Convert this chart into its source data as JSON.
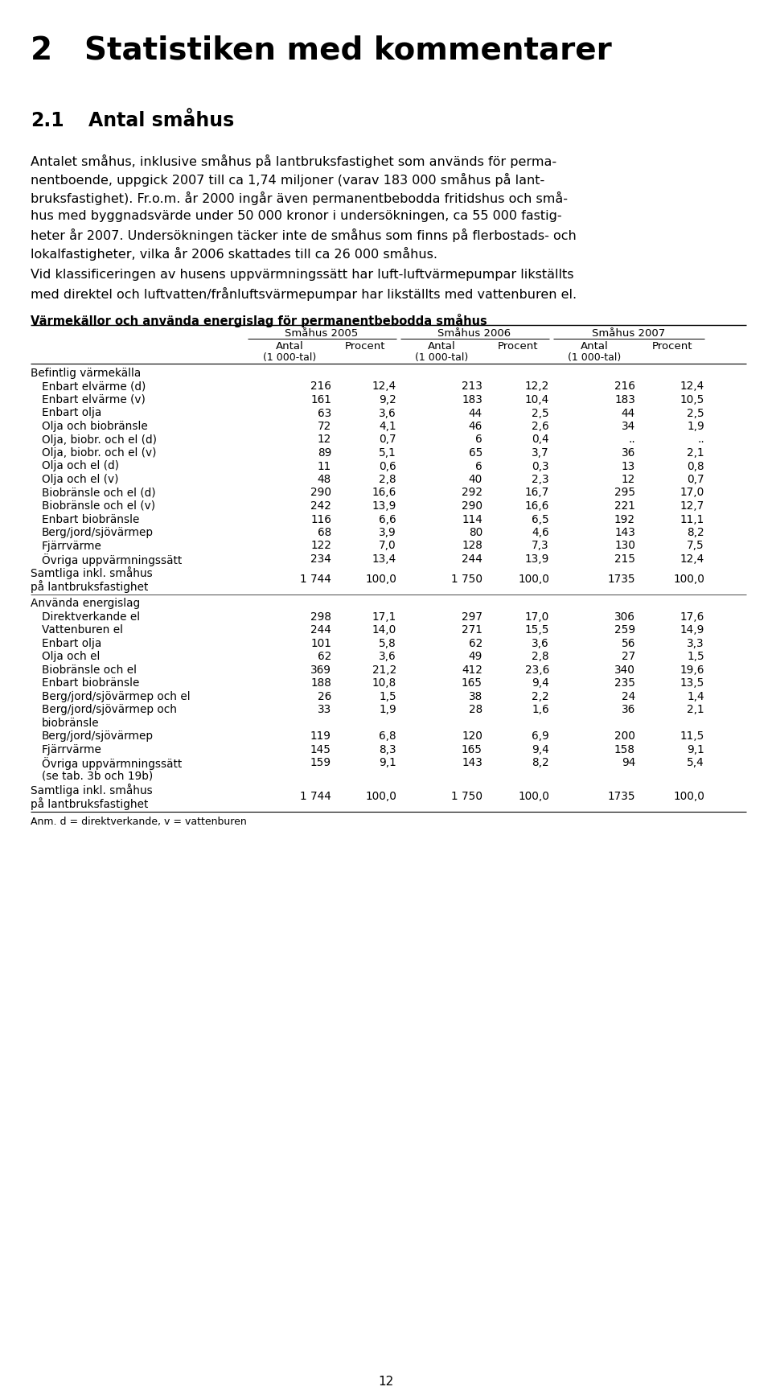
{
  "page_num": "12",
  "chapter_num": "2",
  "chapter_title": "Statistiken med kommentarer",
  "section_num": "2.1",
  "section_title": "Antal småhus",
  "body_text": [
    "Antalet småhus, inklusive småhus på lantbruksfastighet som används för perma-",
    "nentboende, uppgick 2007 till ca 1,74 miljoner (varav 183 000 småhus på lant-",
    "bruksfastighet). Fr.o.m. år 2000 ingår även permanentbebodda fritidshus och små-",
    "hus med byggnadsvärde under 50 000 kronor i undersökningen, ca 55 000 fastig-",
    "heter år 2007. Undersökningen täcker inte de småhus som finns på flerbostads- och",
    "lokalfastigheter, vilka år 2006 skattades till ca 26 000 småhus."
  ],
  "body_text2": [
    "Vid klassificeringen av husens uppvärmningssätt har luft-luftvärmepumpar likställts",
    "med direktel och luftvatten/frånluftsvärmepumpar har likställts med vattenburen el."
  ],
  "table_title": "Värmekällor och använda energislag för permanentbebodda småhus",
  "col_groups": [
    "Småhus 2005",
    "Småhus 2006",
    "Småhus 2007"
  ],
  "col_headers": [
    "Antal",
    "Procent",
    "Antal",
    "Procent",
    "Antal",
    "Procent"
  ],
  "col_subheaders": [
    "(1 000-tal)",
    "",
    "(1 000-tal)",
    "",
    "(1 000-tal)",
    ""
  ],
  "section1_label": "Befintlig värmekälla",
  "rows_section1": [
    [
      "Enbart elvärme (d)",
      "216",
      "12,4",
      "213",
      "12,2",
      "216",
      "12,4"
    ],
    [
      "Enbart elvärme (v)",
      "161",
      "9,2",
      "183",
      "10,4",
      "183",
      "10,5"
    ],
    [
      "Enbart olja",
      "63",
      "3,6",
      "44",
      "2,5",
      "44",
      "2,5"
    ],
    [
      "Olja och biobränsle",
      "72",
      "4,1",
      "46",
      "2,6",
      "34",
      "1,9"
    ],
    [
      "Olja, biobr. och el (d)",
      "12",
      "0,7",
      "6",
      "0,4",
      "..",
      ".."
    ],
    [
      "Olja, biobr. och el (v)",
      "89",
      "5,1",
      "65",
      "3,7",
      "36",
      "2,1"
    ],
    [
      "Olja och el (d)",
      "11",
      "0,6",
      "6",
      "0,3",
      "13",
      "0,8"
    ],
    [
      "Olja och el (v)",
      "48",
      "2,8",
      "40",
      "2,3",
      "12",
      "0,7"
    ],
    [
      "Biobränsle och el (d)",
      "290",
      "16,6",
      "292",
      "16,7",
      "295",
      "17,0"
    ],
    [
      "Biobränsle och el (v)",
      "242",
      "13,9",
      "290",
      "16,6",
      "221",
      "12,7"
    ],
    [
      "Enbart biobränsle",
      "116",
      "6,6",
      "114",
      "6,5",
      "192",
      "11,1"
    ],
    [
      "Berg/jord/sjövärmep",
      "68",
      "3,9",
      "80",
      "4,6",
      "143",
      "8,2"
    ],
    [
      "Fjärrvärme",
      "122",
      "7,0",
      "128",
      "7,3",
      "130",
      "7,5"
    ],
    [
      "Övriga uppvärmningssätt",
      "234",
      "13,4",
      "244",
      "13,9",
      "215",
      "12,4"
    ]
  ],
  "total_row1_line1": "Samtliga inkl. småhus",
  "total_row1_line2": "på lantbruksfastighet",
  "total_row1_vals": [
    "1 744",
    "100,0",
    "1 750",
    "100,0",
    "1735",
    "100,0"
  ],
  "section2_label": "Använda energislag",
  "rows_section2": [
    [
      "Direktverkande el",
      "298",
      "17,1",
      "297",
      "17,0",
      "306",
      "17,6"
    ],
    [
      "Vattenburen el",
      "244",
      "14,0",
      "271",
      "15,5",
      "259",
      "14,9"
    ],
    [
      "Enbart olja",
      "101",
      "5,8",
      "62",
      "3,6",
      "56",
      "3,3"
    ],
    [
      "Olja och el",
      "62",
      "3,6",
      "49",
      "2,8",
      "27",
      "1,5"
    ],
    [
      "Biobränsle och el",
      "369",
      "21,2",
      "412",
      "23,6",
      "340",
      "19,6"
    ],
    [
      "Enbart biobränsle",
      "188",
      "10,8",
      "165",
      "9,4",
      "235",
      "13,5"
    ],
    [
      "Berg/jord/sjövärmep och el",
      "26",
      "1,5",
      "38",
      "2,2",
      "24",
      "1,4"
    ],
    [
      "Berg/jord/sjövärmep och",
      "33",
      "1,9",
      "28",
      "1,6",
      "36",
      "2,1"
    ],
    [
      "Berg/jord/sjövärmep",
      "119",
      "6,8",
      "120",
      "6,9",
      "200",
      "11,5"
    ],
    [
      "Fjärrvärme",
      "145",
      "8,3",
      "165",
      "9,4",
      "158",
      "9,1"
    ],
    [
      "Övriga uppvärmningssätt",
      "159",
      "9,1",
      "143",
      "8,2",
      "94",
      "5,4"
    ]
  ],
  "row_s2_extra": [
    "biobränsle",
    "(se tab. 3b och 19b)"
  ],
  "row_s2_extra_idx": [
    7,
    10
  ],
  "total_row2_line1": "Samtliga inkl. småhus",
  "total_row2_line2": "på lantbruksfastighet",
  "total_row2_vals": [
    "1 744",
    "100,0",
    "1 750",
    "100,0",
    "1735",
    "100,0"
  ],
  "footnote": "Anm. d = direktverkande, v = vattenburen",
  "bg_color": "#ffffff",
  "text_color": "#000000"
}
